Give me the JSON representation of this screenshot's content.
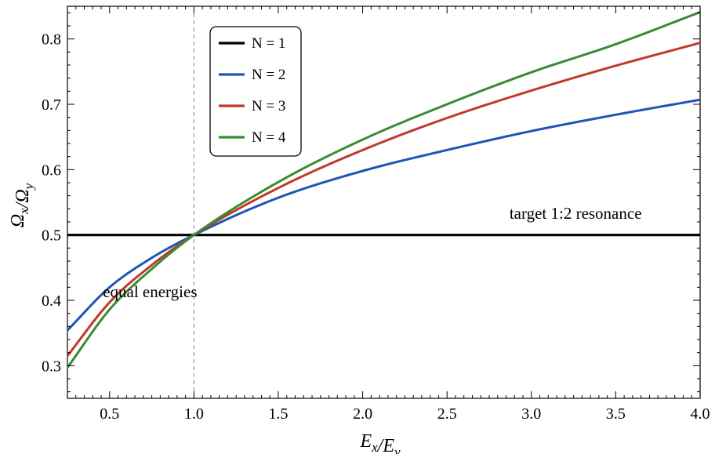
{
  "chart_data": {
    "type": "line",
    "title": "",
    "xlabel": "E_x/E_y",
    "ylabel": "Ω_x/Ω_y",
    "xlim": [
      0.25,
      4.0
    ],
    "ylim": [
      0.25,
      0.85
    ],
    "x_ticks": [
      0.5,
      1.0,
      1.5,
      2.0,
      2.5,
      3.0,
      3.5,
      4.0
    ],
    "x_tick_labels": [
      "0.5",
      "1.0",
      "1.5",
      "2.0",
      "2.5",
      "3.0",
      "3.5",
      "4.0"
    ],
    "y_ticks": [
      0.3,
      0.4,
      0.5,
      0.6,
      0.7,
      0.8
    ],
    "y_tick_labels": [
      "0.3",
      "0.4",
      "0.5",
      "0.6",
      "0.7",
      "0.8"
    ],
    "grid": false,
    "legend_position": "top-left",
    "series": [
      {
        "name": "N = 1",
        "color": "#000000",
        "x": [
          0.25,
          0.5,
          1.0,
          1.5,
          2.0,
          2.5,
          3.0,
          3.5,
          4.0
        ],
        "y": [
          0.5,
          0.5,
          0.5,
          0.5,
          0.5,
          0.5,
          0.5,
          0.5,
          0.5
        ]
      },
      {
        "name": "N = 2",
        "color": "#1f55b4",
        "x": [
          0.25,
          0.5,
          0.75,
          1.0,
          1.5,
          2.0,
          2.5,
          3.0,
          3.5,
          4.0
        ],
        "y": [
          0.354,
          0.42,
          0.465,
          0.5,
          0.557,
          0.598,
          0.63,
          0.659,
          0.684,
          0.707
        ]
      },
      {
        "name": "N = 3",
        "color": "#c0392b",
        "x": [
          0.25,
          0.5,
          0.75,
          1.0,
          1.5,
          2.0,
          2.5,
          3.0,
          3.5,
          4.0
        ],
        "y": [
          0.315,
          0.397,
          0.454,
          0.5,
          0.572,
          0.63,
          0.679,
          0.721,
          0.759,
          0.794
        ]
      },
      {
        "name": "N = 4",
        "color": "#3a8a35",
        "x": [
          0.25,
          0.5,
          0.75,
          1.0,
          1.5,
          2.0,
          2.5,
          3.0,
          3.5,
          4.0
        ],
        "y": [
          0.297,
          0.386,
          0.448,
          0.5,
          0.581,
          0.646,
          0.7,
          0.749,
          0.792,
          0.841
        ]
      }
    ],
    "reference_line": {
      "x": 1.0,
      "style": "dashed",
      "color": "#999999"
    },
    "annotations": [
      {
        "text": "target 1:2 resonance",
        "x": 2.87,
        "y": 0.525
      },
      {
        "text": "equal energies",
        "x": 0.46,
        "y": 0.405
      }
    ]
  }
}
